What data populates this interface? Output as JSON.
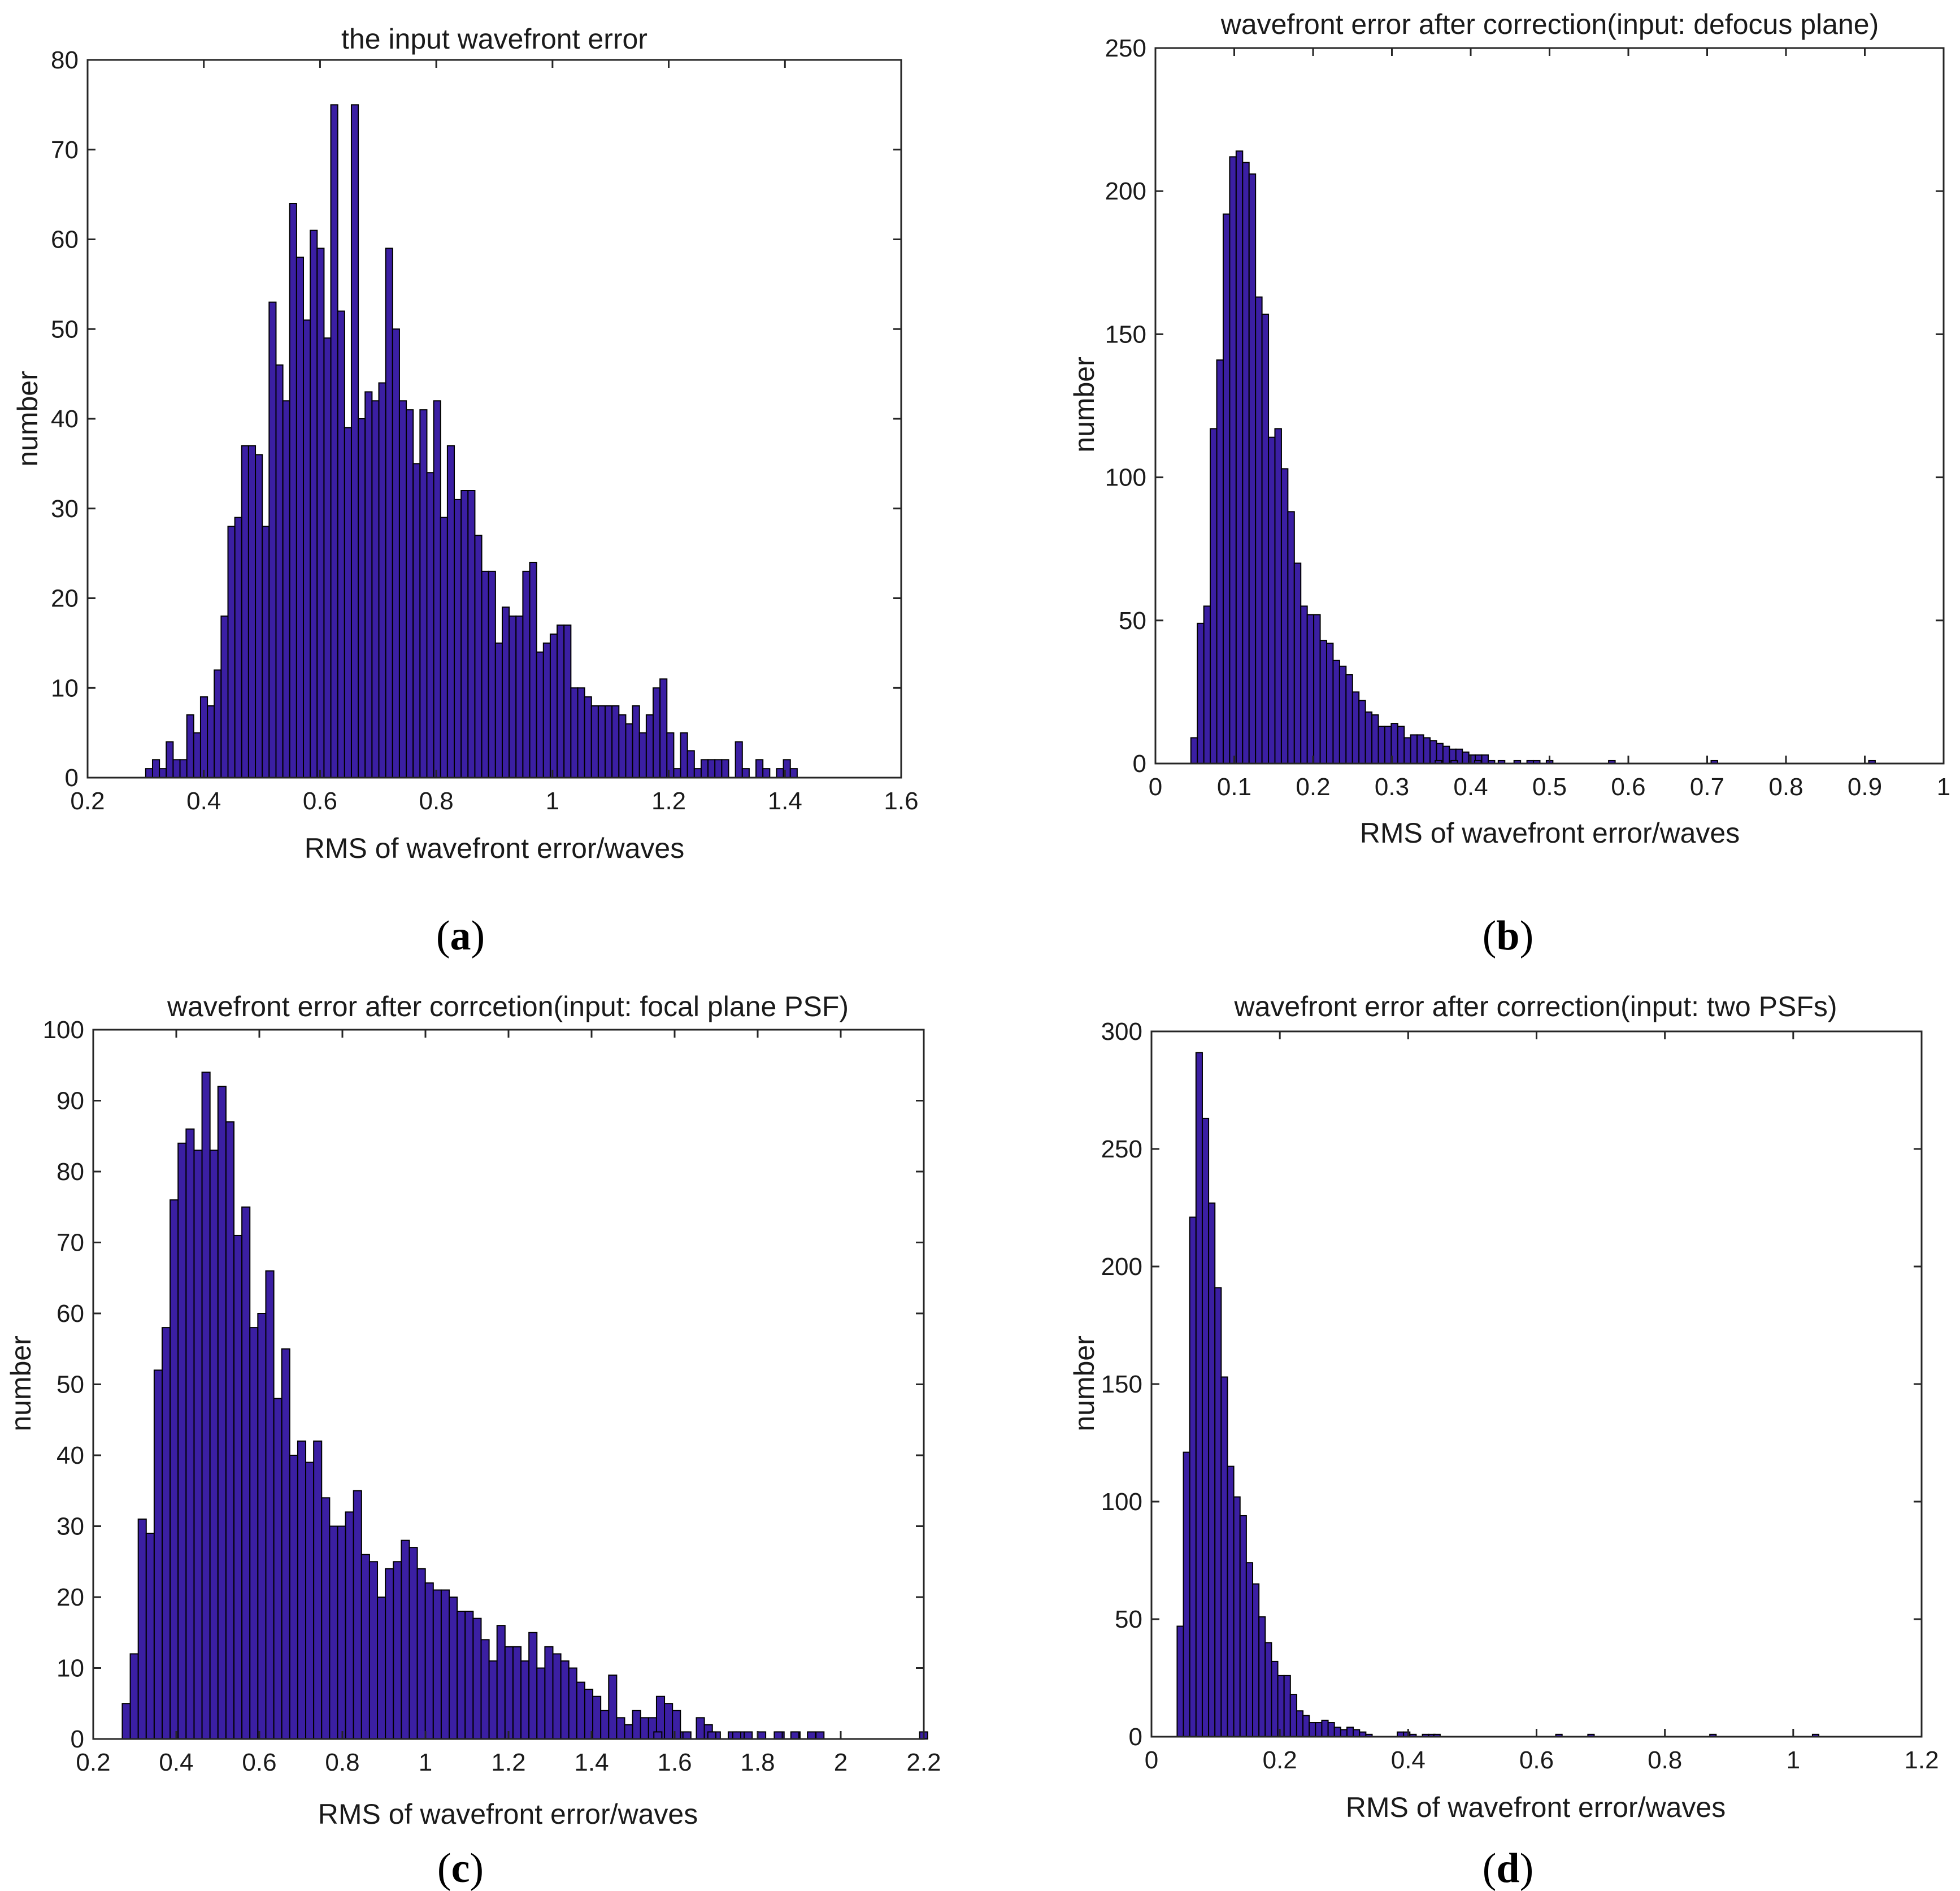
{
  "colors": {
    "bar_fill": "#3b1fa3",
    "bar_edge": "#000000",
    "axes": "#262626",
    "text": "#1a1a1a"
  },
  "chart_data": [
    {
      "type": "bar",
      "panel": "a",
      "title": "the input wavefront error",
      "xlabel": "RMS of wavefront error/waves",
      "ylabel": "number",
      "xlim": [
        0.2,
        1.6
      ],
      "ylim": [
        0,
        80
      ],
      "xticks": [
        0.2,
        0.4,
        0.6,
        0.8,
        1,
        1.2,
        1.4,
        1.6
      ],
      "xtick_labels": [
        "0.2",
        "0.4",
        "0.6",
        "0.8",
        "1",
        "1.2",
        "1.4",
        "1.6"
      ],
      "yticks": [
        0,
        10,
        20,
        30,
        40,
        50,
        60,
        70,
        80
      ],
      "ytick_labels": [
        "0",
        "10",
        "20",
        "30",
        "40",
        "50",
        "60",
        "70",
        "80"
      ],
      "bin_start": 0.3,
      "bin_width": 0.0118,
      "values": [
        1,
        2,
        1,
        4,
        2,
        2,
        7,
        5,
        9,
        8,
        12,
        18,
        28,
        29,
        37,
        37,
        36,
        28,
        53,
        46,
        42,
        64,
        58,
        51,
        61,
        59,
        49,
        75,
        52,
        39,
        75,
        40,
        43,
        42,
        44,
        59,
        50,
        42,
        41,
        35,
        41,
        34,
        42,
        29,
        37,
        31,
        32,
        32,
        27,
        23,
        23,
        15,
        19,
        18,
        18,
        23,
        24,
        14,
        15,
        16,
        17,
        17,
        10,
        10,
        9,
        8,
        8,
        8,
        8,
        7,
        6,
        8,
        5,
        7,
        10,
        11,
        5,
        1,
        5,
        3,
        1,
        2,
        2,
        2,
        2,
        0,
        4,
        1,
        0,
        2,
        1,
        0,
        1,
        2,
        1,
        0,
        0,
        0,
        0,
        0,
        0,
        0,
        0,
        0,
        0,
        0,
        0,
        0,
        0,
        0,
        0,
        0,
        0,
        0,
        0,
        0,
        0,
        0,
        0,
        0,
        0,
        0,
        0,
        0
      ]
    },
    {
      "type": "bar",
      "panel": "b",
      "title": "wavefront error after correction(input: defocus plane)",
      "xlabel": "RMS of wavefront error/waves",
      "ylabel": "number",
      "xlim": [
        0,
        1
      ],
      "ylim": [
        0,
        250
      ],
      "xticks": [
        0,
        0.1,
        0.2,
        0.3,
        0.4,
        0.5,
        0.6,
        0.7,
        0.8,
        0.9,
        1
      ],
      "xtick_labels": [
        "0",
        "0.1",
        "0.2",
        "0.3",
        "0.4",
        "0.5",
        "0.6",
        "0.7",
        "0.8",
        "0.9",
        "1"
      ],
      "yticks": [
        0,
        50,
        100,
        150,
        200,
        250
      ],
      "ytick_labels": [
        "0",
        "50",
        "100",
        "150",
        "200",
        "250"
      ],
      "bin_start": 0.045,
      "bin_width": 0.0082,
      "values": [
        9,
        49,
        55,
        117,
        141,
        192,
        212,
        214,
        210,
        206,
        163,
        157,
        114,
        117,
        103,
        88,
        70,
        55,
        52,
        52,
        43,
        42,
        36,
        34,
        31,
        25,
        22,
        18,
        17,
        13,
        13,
        14,
        13,
        9,
        10,
        10,
        9,
        8,
        7,
        6,
        5,
        5,
        4,
        3,
        3,
        3,
        1,
        0,
        0,
        0,
        0,
        0,
        1,
        1,
        0,
        1,
        0,
        0,
        0,
        0,
        0,
        0,
        0,
        0,
        0,
        0,
        0,
        0,
        0,
        0,
        0,
        0,
        0,
        0,
        0,
        0,
        0,
        0,
        0,
        0,
        0,
        0,
        0,
        0,
        0,
        0,
        0,
        0,
        0,
        0,
        0,
        0,
        0,
        0,
        0,
        0,
        0,
        0,
        0,
        0,
        0,
        0,
        0,
        0,
        0,
        0,
        0
      ],
      "sparse_bins": [
        [
          0.355,
          1
        ],
        [
          0.375,
          1
        ],
        [
          0.405,
          1
        ],
        [
          0.435,
          1
        ],
        [
          0.455,
          1
        ],
        [
          0.575,
          1
        ],
        [
          0.705,
          1
        ],
        [
          0.905,
          1
        ]
      ]
    },
    {
      "type": "bar",
      "panel": "c",
      "title": "wavefront error after corrcetion(input: focal plane PSF)",
      "xlabel": "RMS of wavefront error/waves",
      "ylabel": "number",
      "xlim": [
        0.2,
        2.2
      ],
      "ylim": [
        0,
        100
      ],
      "xticks": [
        0.2,
        0.4,
        0.6,
        0.8,
        1,
        1.2,
        1.4,
        1.6,
        1.8,
        2,
        2.2
      ],
      "xtick_labels": [
        "0.2",
        "0.4",
        "0.6",
        "0.8",
        "1",
        "1.2",
        "1.4",
        "1.6",
        "1.8",
        "2",
        "2.2"
      ],
      "yticks": [
        0,
        10,
        20,
        30,
        40,
        50,
        60,
        70,
        80,
        90,
        100
      ],
      "ytick_labels": [
        "0",
        "10",
        "20",
        "30",
        "40",
        "50",
        "60",
        "70",
        "80",
        "90",
        "100"
      ],
      "bin_start": 0.27,
      "bin_width": 0.0192,
      "values": [
        5,
        12,
        31,
        29,
        52,
        58,
        76,
        84,
        86,
        83,
        94,
        83,
        92,
        87,
        71,
        75,
        58,
        60,
        66,
        48,
        55,
        40,
        42,
        39,
        42,
        34,
        30,
        30,
        32,
        35,
        26,
        25,
        20,
        24,
        25,
        28,
        27,
        24,
        22,
        21,
        21,
        20,
        18,
        18,
        17,
        14,
        11,
        16,
        13,
        13,
        11,
        15,
        10,
        13,
        12,
        11,
        10,
        8,
        7,
        6,
        4,
        9,
        3,
        2,
        4,
        3,
        3,
        6,
        5,
        4,
        1,
        0,
        3,
        2,
        1,
        0,
        1,
        1,
        1,
        0,
        0,
        0,
        1,
        0,
        1,
        0,
        0,
        1,
        0,
        0,
        0,
        0,
        0,
        0,
        0,
        0,
        0,
        0,
        0,
        0,
        0,
        0,
        0,
        0
      ],
      "sparse_bins": [
        [
          1.55,
          1
        ],
        [
          1.62,
          1
        ],
        [
          1.68,
          1
        ],
        [
          1.74,
          1
        ],
        [
          1.8,
          1
        ],
        [
          1.84,
          1
        ],
        [
          1.88,
          1
        ],
        [
          1.92,
          1
        ],
        [
          2.19,
          1
        ]
      ]
    },
    {
      "type": "bar",
      "panel": "d",
      "title": "wavefront error after correction(input: two PSFs)",
      "xlabel": "RMS of wavefront error/waves",
      "ylabel": "number",
      "xlim": [
        0,
        1.2
      ],
      "ylim": [
        0,
        300
      ],
      "xticks": [
        0,
        0.2,
        0.4,
        0.6,
        0.8,
        1,
        1.2
      ],
      "xtick_labels": [
        "0",
        "0.2",
        "0.4",
        "0.6",
        "0.8",
        "1",
        "1.2"
      ],
      "yticks": [
        0,
        50,
        100,
        150,
        200,
        250,
        300
      ],
      "ytick_labels": [
        "0",
        "50",
        "100",
        "150",
        "200",
        "250",
        "300"
      ],
      "bin_start": 0.04,
      "bin_width": 0.0098,
      "values": [
        47,
        121,
        221,
        291,
        263,
        227,
        191,
        153,
        115,
        102,
        94,
        74,
        65,
        51,
        40,
        32,
        26,
        26,
        18,
        11,
        9,
        6,
        6,
        7,
        6,
        4,
        3,
        4,
        3,
        2,
        1,
        0,
        0,
        0,
        0,
        2,
        2,
        1,
        0,
        1,
        1,
        0,
        0,
        0,
        0,
        0,
        0,
        0,
        0,
        0,
        0,
        0,
        0,
        0,
        0,
        0,
        0,
        0,
        0,
        0,
        0,
        0,
        0,
        0,
        0,
        0,
        0,
        0,
        0,
        0,
        0,
        0,
        0,
        0,
        0,
        0,
        0,
        0,
        0,
        0,
        0,
        0,
        0,
        0,
        0,
        0,
        0,
        0,
        0,
        0,
        0,
        0,
        0,
        0,
        0,
        0,
        0,
        0,
        0,
        0,
        0,
        0,
        0,
        0,
        0,
        0,
        0,
        0,
        0,
        0,
        0,
        0,
        0,
        0,
        0,
        0,
        0,
        0,
        0,
        0,
        0,
        0
      ],
      "sparse_bins": [
        [
          0.44,
          1
        ],
        [
          0.63,
          1
        ],
        [
          0.68,
          1
        ],
        [
          0.87,
          1
        ],
        [
          1.03,
          1
        ]
      ]
    }
  ],
  "panel_labels": [
    {
      "open": "(",
      "letter": "a",
      "close": ")"
    },
    {
      "open": "(",
      "letter": "b",
      "close": ")"
    },
    {
      "open": "(",
      "letter": "c",
      "close": ")"
    },
    {
      "open": "(",
      "letter": "d",
      "close": ")"
    }
  ]
}
